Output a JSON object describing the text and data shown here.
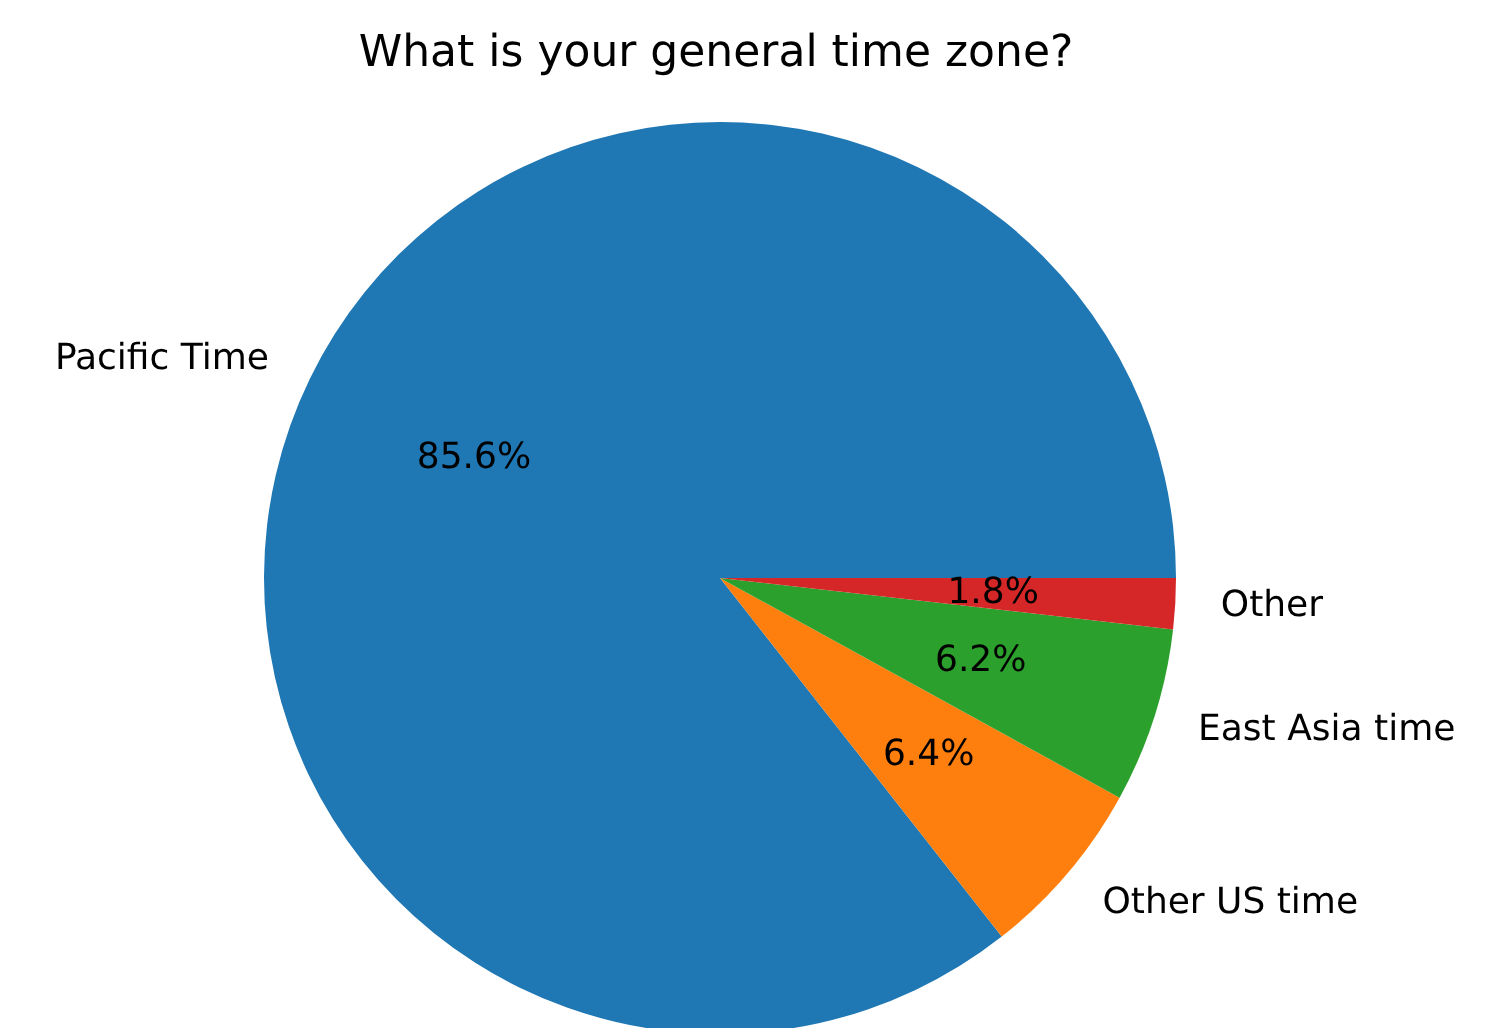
{
  "chart_data": {
    "type": "pie",
    "title": "What is your general time zone?",
    "categories": [
      "Pacific Time",
      "Other US time",
      "East Asia time",
      "Other"
    ],
    "values": [
      85.6,
      6.4,
      6.2,
      1.8
    ],
    "value_labels": [
      "85.6%",
      "6.4%",
      "6.2%",
      "1.8%"
    ],
    "colors": [
      "#1f77b4",
      "#ff7f0e",
      "#2ca02c",
      "#d62728"
    ]
  }
}
